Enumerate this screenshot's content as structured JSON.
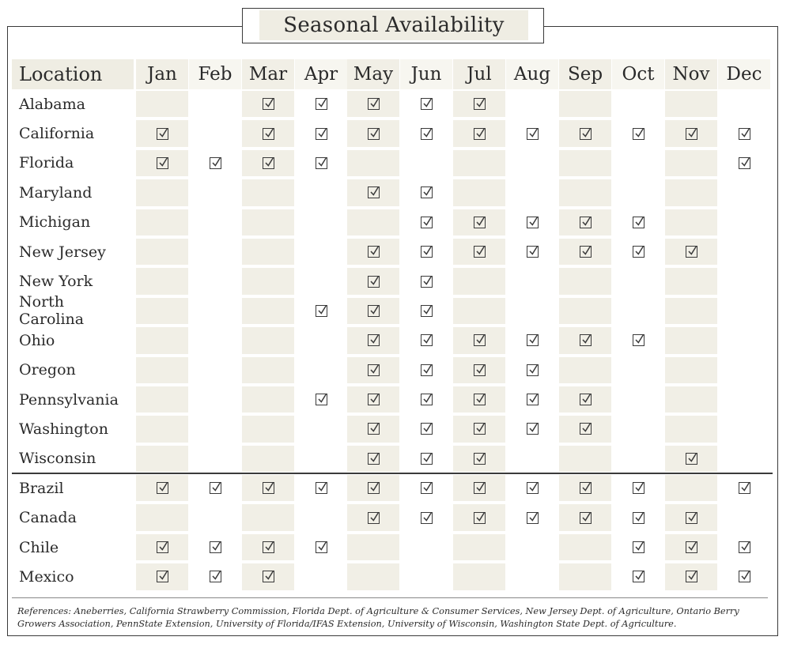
{
  "title": "Seasonal Availability",
  "header": {
    "location_label": "Location",
    "months": [
      "Jan",
      "Feb",
      "Mar",
      "Apr",
      "May",
      "Jun",
      "Jul",
      "Aug",
      "Sep",
      "Oct",
      "Nov",
      "Dec"
    ]
  },
  "rows": [
    {
      "location": "Alabama",
      "months": [
        0,
        0,
        1,
        1,
        1,
        1,
        1,
        0,
        0,
        0,
        0,
        0
      ]
    },
    {
      "location": "California",
      "months": [
        1,
        0,
        1,
        1,
        1,
        1,
        1,
        1,
        1,
        1,
        1,
        1
      ]
    },
    {
      "location": "Florida",
      "months": [
        1,
        1,
        1,
        1,
        0,
        0,
        0,
        0,
        0,
        0,
        0,
        1
      ]
    },
    {
      "location": "Maryland",
      "months": [
        0,
        0,
        0,
        0,
        1,
        1,
        0,
        0,
        0,
        0,
        0,
        0
      ]
    },
    {
      "location": "Michigan",
      "months": [
        0,
        0,
        0,
        0,
        0,
        1,
        1,
        1,
        1,
        1,
        0,
        0
      ]
    },
    {
      "location": "New Jersey",
      "months": [
        0,
        0,
        0,
        0,
        1,
        1,
        1,
        1,
        1,
        1,
        1,
        0
      ]
    },
    {
      "location": "New York",
      "months": [
        0,
        0,
        0,
        0,
        1,
        1,
        0,
        0,
        0,
        0,
        0,
        0
      ]
    },
    {
      "location": "North Carolina",
      "months": [
        0,
        0,
        0,
        1,
        1,
        1,
        0,
        0,
        0,
        0,
        0,
        0
      ]
    },
    {
      "location": "Ohio",
      "months": [
        0,
        0,
        0,
        0,
        1,
        1,
        1,
        1,
        1,
        1,
        0,
        0
      ]
    },
    {
      "location": "Oregon",
      "months": [
        0,
        0,
        0,
        0,
        1,
        1,
        1,
        1,
        0,
        0,
        0,
        0
      ]
    },
    {
      "location": "Pennsylvania",
      "months": [
        0,
        0,
        0,
        1,
        1,
        1,
        1,
        1,
        1,
        0,
        0,
        0
      ]
    },
    {
      "location": "Washington",
      "months": [
        0,
        0,
        0,
        0,
        1,
        1,
        1,
        1,
        1,
        0,
        0,
        0
      ]
    },
    {
      "location": "Wisconsin",
      "months": [
        0,
        0,
        0,
        0,
        1,
        1,
        1,
        0,
        0,
        0,
        1,
        0
      ]
    },
    {
      "location": "Brazil",
      "months": [
        1,
        1,
        1,
        1,
        1,
        1,
        1,
        1,
        1,
        1,
        0,
        1
      ]
    },
    {
      "location": "Canada",
      "months": [
        0,
        0,
        0,
        0,
        1,
        1,
        1,
        1,
        1,
        1,
        1,
        0
      ]
    },
    {
      "location": "Chile",
      "months": [
        1,
        1,
        1,
        1,
        0,
        0,
        0,
        0,
        0,
        1,
        1,
        1
      ]
    },
    {
      "location": "Mexico",
      "months": [
        1,
        1,
        1,
        0,
        0,
        0,
        0,
        0,
        0,
        1,
        1,
        1
      ]
    }
  ],
  "references": "References: Aneberries, California Strawberry Commission, Florida Dept. of Agriculture & Consumer Services, New Jersey Dept. of Agriculture, Ontario Berry Growers Association, PennState Extension, University of Florida/IFAS Extension, University of Wisconsin, Washington State Dept. of Agriculture.",
  "colors": {
    "shade": "#f1efe6",
    "border": "#3a3a3a"
  }
}
